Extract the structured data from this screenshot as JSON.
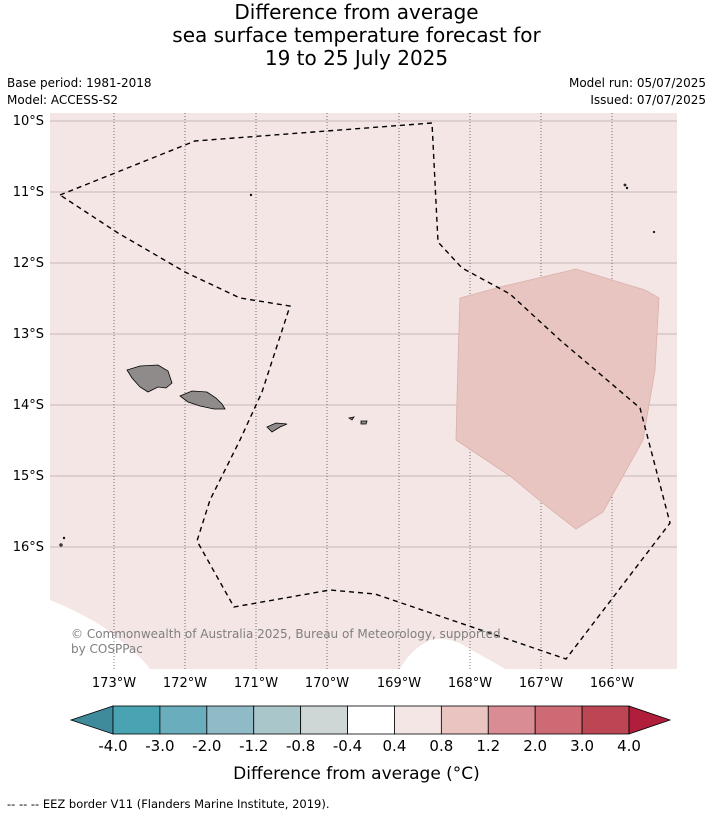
{
  "title": {
    "line1": "Difference from average",
    "line2": "sea surface temperature forecast for",
    "line3": "19 to 25 July 2025"
  },
  "meta": {
    "base_period": "Base period: 1981-2018",
    "model": "Model: ACCESS-S2",
    "model_run": "Model run: 05/07/2025",
    "issued": "Issued: 07/07/2025"
  },
  "map": {
    "lat_labels": [
      "10°S",
      "11°S",
      "12°S",
      "13°S",
      "14°S",
      "15°S",
      "16°S"
    ],
    "lon_labels": [
      "173°W",
      "172°W",
      "171°W",
      "170°W",
      "169°W",
      "168°W",
      "167°W",
      "166°W"
    ],
    "copyright_line1": "© Commonwealth of Australia 2025, Bureau of Meteorology, supported",
    "copyright_line2": "by COSPPac",
    "background_color": "#f4e6e5",
    "anomaly_color": "#e8c5c1",
    "land_color": "#8e8b8a",
    "eez_border": "dashed"
  },
  "colorbar": {
    "title": "Difference from average (°C)",
    "tick_labels": [
      "-4.0",
      "-3.0",
      "-2.0",
      "-1.2",
      "-0.8",
      "-0.4",
      "0.4",
      "0.8",
      "1.2",
      "2.0",
      "3.0",
      "4.0"
    ],
    "colors": [
      "#3f8b9b",
      "#4aa3b3",
      "#6aaebd",
      "#8ebbc5",
      "#a9c6cb",
      "#cfd6d6",
      "#ffffff",
      "#f5e6e6",
      "#e9c4c0",
      "#d98c93",
      "#cd6a74",
      "#bd4655",
      "#b01e3c"
    ]
  },
  "footnote": "-- -- -- EEZ border V11 (Flanders Marine Institute, 2019)."
}
